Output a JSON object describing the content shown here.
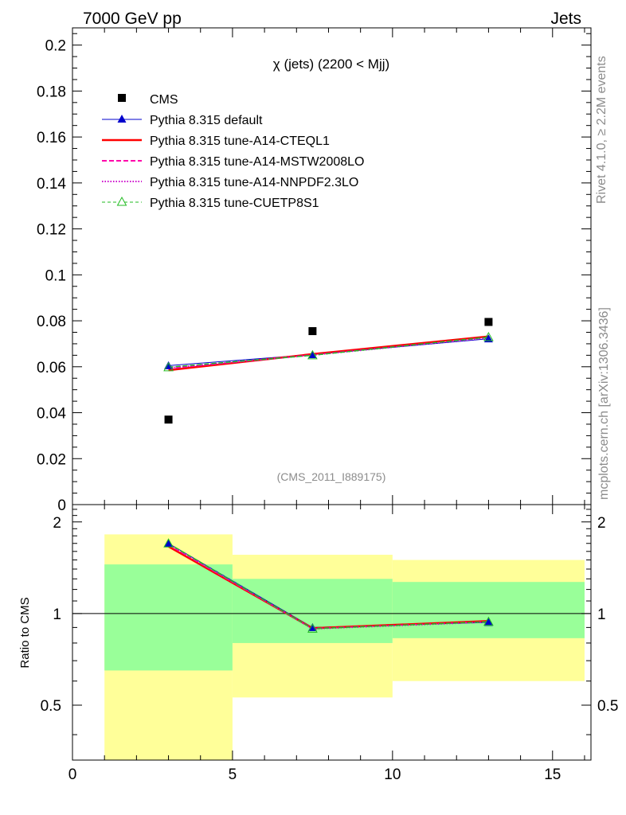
{
  "header": {
    "left": "7000 GeV pp",
    "right": "Jets"
  },
  "side": {
    "rivet": "Rivet 4.1.0, ≥ 2.2M events",
    "mcplots": "mcplots.cern.ch [arXiv:1306.3436]"
  },
  "watermark": "(CMS_2011_I889175)",
  "chart_data": [
    {
      "type": "scatter+line",
      "panel": "main",
      "title": "χ (jets) (2200 < Mjj)",
      "xlim": [
        0,
        16.2
      ],
      "ylim": [
        0,
        0.2075
      ],
      "yticks": [
        0,
        0.02,
        0.04,
        0.06,
        0.08,
        0.1,
        0.12,
        0.14,
        0.16,
        0.18,
        0.2
      ],
      "ytick_labels": [
        "0",
        "0.02",
        "0.04",
        "0.06",
        "0.08",
        "0.1",
        "0.12",
        "0.14",
        "0.16",
        "0.18",
        "0.2"
      ],
      "legend_position": "top-left",
      "data": {
        "name": "CMS",
        "x": [
          3,
          7.5,
          13
        ],
        "y": [
          0.037,
          0.0755,
          0.0795
        ],
        "color": "#000000"
      },
      "series": [
        {
          "name": "Pythia 8.315 default",
          "x": [
            3,
            7.5,
            13
          ],
          "y": [
            0.0605,
            0.0653,
            0.0722
          ],
          "color": "#0000cc",
          "style": "solid",
          "marker": "filled-triangle"
        },
        {
          "name": "Pythia 8.315 tune-A14-CTEQL1",
          "x": [
            3,
            7.5,
            13
          ],
          "y": [
            0.0585,
            0.0655,
            0.0732
          ],
          "color": "#ff0000",
          "style": "solid-thick",
          "marker": "none"
        },
        {
          "name": "Pythia 8.315 tune-A14-MSTW2008LO",
          "x": [
            3,
            7.5,
            13
          ],
          "y": [
            0.0592,
            0.0652,
            0.0728
          ],
          "color": "#ff00aa",
          "style": "dashed",
          "marker": "none"
        },
        {
          "name": "Pythia 8.315 tune-A14-NNPDF2.3LO",
          "x": [
            3,
            7.5,
            13
          ],
          "y": [
            0.0595,
            0.0651,
            0.0726
          ],
          "color": "#cc00cc",
          "style": "dotted",
          "marker": "none"
        },
        {
          "name": "Pythia 8.315 tune-CUETP8S1",
          "x": [
            3,
            7.5,
            13
          ],
          "y": [
            0.0598,
            0.065,
            0.0729
          ],
          "color": "#22bb22",
          "style": "dashed",
          "marker": "open-triangle"
        }
      ]
    },
    {
      "type": "ratio",
      "panel": "ratio",
      "ylabel": "Ratio to CMS",
      "xlim": [
        0,
        16.2
      ],
      "ylim": [
        0.33,
        2.28
      ],
      "yticks": [
        0.5,
        1,
        2
      ],
      "ytick_labels": [
        "0.5",
        "1",
        "2"
      ],
      "xticks": [
        0,
        5,
        10,
        15
      ],
      "xtick_labels": [
        "0",
        "5",
        "10",
        "15"
      ],
      "bands": [
        {
          "x_low": 1,
          "x_high": 5,
          "yellow": [
            0.33,
            1.82
          ],
          "green": [
            0.65,
            1.45
          ]
        },
        {
          "x_low": 5,
          "x_high": 10,
          "yellow": [
            0.53,
            1.56
          ],
          "green": [
            0.8,
            1.3
          ]
        },
        {
          "x_low": 10,
          "x_high": 16,
          "yellow": [
            0.6,
            1.5
          ],
          "green": [
            0.83,
            1.27
          ]
        }
      ],
      "series": [
        {
          "name": "Pythia 8.315 default",
          "x": [
            3,
            7.5,
            13
          ],
          "y": [
            1.7,
            0.9,
            0.935
          ],
          "color": "#0000cc",
          "style": "solid",
          "marker": "filled-triangle"
        },
        {
          "name": "Pythia 8.315 tune-A14-CTEQL1",
          "x": [
            3,
            7.5,
            13
          ],
          "y": [
            1.66,
            0.895,
            0.945
          ],
          "color": "#ff0000",
          "style": "solid-thick",
          "marker": "none"
        },
        {
          "name": "Pythia 8.315 tune-A14-MSTW2008LO",
          "x": [
            3,
            7.5,
            13
          ],
          "y": [
            1.68,
            0.893,
            0.94
          ],
          "color": "#ff00aa",
          "style": "dashed",
          "marker": "none"
        },
        {
          "name": "Pythia 8.315 tune-A14-NNPDF2.3LO",
          "x": [
            3,
            7.5,
            13
          ],
          "y": [
            1.69,
            0.891,
            0.938
          ],
          "color": "#cc00cc",
          "style": "dotted",
          "marker": "none"
        },
        {
          "name": "Pythia 8.315 tune-CUETP8S1",
          "x": [
            3,
            7.5,
            13
          ],
          "y": [
            1.7,
            0.892,
            0.94
          ],
          "color": "#22bb22",
          "style": "dashed",
          "marker": "open-triangle"
        }
      ]
    }
  ]
}
